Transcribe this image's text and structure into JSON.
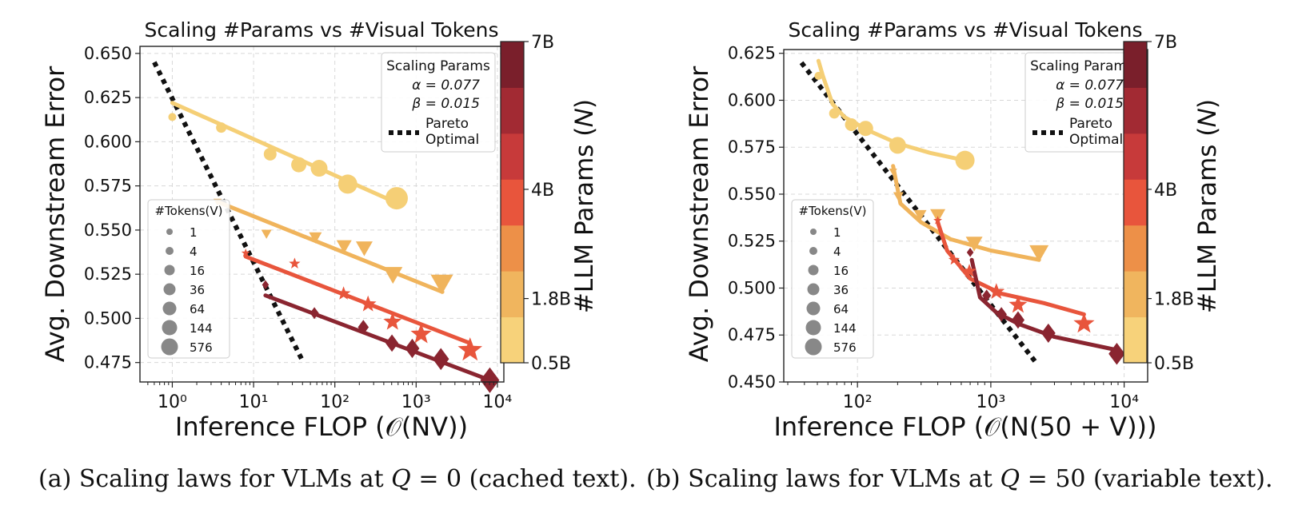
{
  "captions": {
    "a": {
      "prefix": "(a) Scaling laws for VLMs at ",
      "var": "Q",
      "eq": " = 0",
      "suffix": " (cached text)."
    },
    "b": {
      "prefix": "(b) Scaling laws for VLMs at ",
      "var": "Q",
      "eq": " = 50",
      "suffix": " (variable text)."
    }
  },
  "chart_data": [
    {
      "type": "scatter",
      "title": "Scaling #Params vs #Visual Tokens",
      "xlabel": "Inference FLOP (𝒪(NV))",
      "ylabel": "Avg. Downstream Error",
      "xscale": "log",
      "xlim": [
        0.4,
        12000
      ],
      "ylim": [
        0.464,
        0.654
      ],
      "xticks": [
        {
          "v": 1,
          "label": "10⁰"
        },
        {
          "v": 10,
          "label": "10¹"
        },
        {
          "v": 100,
          "label": "10²"
        },
        {
          "v": 1000,
          "label": "10³"
        },
        {
          "v": 10000,
          "label": "10⁴"
        }
      ],
      "yticks": [
        0.475,
        0.5,
        0.525,
        0.55,
        0.575,
        0.6,
        0.625,
        0.65
      ],
      "grid": true,
      "scaling_params_box": {
        "title": "Scaling Params",
        "alpha": "α = 0.077",
        "beta": "β = 0.015",
        "pareto_label_1": "Pareto",
        "pareto_label_2": "Optimal"
      },
      "pareto": [
        [
          0.6,
          0.645
        ],
        [
          40,
          0.476
        ]
      ],
      "series": [
        {
          "params": "0.5B",
          "color": "#f5cf76",
          "marker": "circle",
          "fit": [
            [
              1,
              0.622
            ],
            [
              600,
              0.565
            ]
          ],
          "points": [
            [
              1,
              0.614
            ],
            [
              4,
              0.608
            ],
            [
              16,
              0.593
            ],
            [
              36,
              0.587
            ],
            [
              64,
              0.585
            ],
            [
              144,
              0.576
            ],
            [
              576,
              0.568
            ]
          ]
        },
        {
          "params": "1.8B",
          "color": "#f0b45c",
          "marker": "triangle-down",
          "fit": [
            [
              3.6,
              0.566
            ],
            [
              2100,
              0.515
            ]
          ],
          "points": [
            [
              3.6,
              0.566
            ],
            [
              14.4,
              0.548
            ],
            [
              57.6,
              0.546
            ],
            [
              130,
              0.541
            ],
            [
              230,
              0.54
            ],
            [
              518,
              0.525
            ],
            [
              2074,
              0.52
            ]
          ]
        },
        {
          "params": "4B",
          "color": "#e8553c",
          "marker": "star",
          "fit": [
            [
              8,
              0.535
            ],
            [
              4600,
              0.486
            ]
          ],
          "points": [
            [
              8,
              0.537
            ],
            [
              32,
              0.531
            ],
            [
              128,
              0.514
            ],
            [
              256,
              0.508
            ],
            [
              512,
              0.498
            ],
            [
              1152,
              0.491
            ],
            [
              4608,
              0.482
            ]
          ]
        },
        {
          "params": "7B",
          "color": "#8a2530",
          "marker": "diamond",
          "fit": [
            [
              14,
              0.513
            ],
            [
              8100,
              0.465
            ]
          ],
          "points": [
            [
              14,
              0.519
            ],
            [
              56,
              0.503
            ],
            [
              224,
              0.495
            ],
            [
              504,
              0.486
            ],
            [
              896,
              0.483
            ],
            [
              2016,
              0.477
            ],
            [
              8064,
              0.465
            ]
          ]
        }
      ]
    },
    {
      "type": "scatter",
      "title": "Scaling #Params vs #Visual Tokens",
      "xlabel": "Inference FLOP (𝒪(N(50 + V)))",
      "ylabel": "Avg. Downstream Error",
      "xscale": "log",
      "xlim": [
        28,
        15000
      ],
      "ylim": [
        0.45,
        0.627
      ],
      "xticks": [
        {
          "v": 100,
          "label": "10²"
        },
        {
          "v": 1000,
          "label": "10³"
        },
        {
          "v": 10000,
          "label": "10⁴"
        }
      ],
      "yticks": [
        0.45,
        0.475,
        0.5,
        0.525,
        0.55,
        0.575,
        0.6,
        0.625
      ],
      "grid": true,
      "scaling_params_box": {
        "title": "Scaling Params",
        "alpha": "α = 0.077",
        "beta": "β = 0.015",
        "pareto_label_1": "Pareto",
        "pareto_label_2": "Optimal"
      },
      "pareto": [
        [
          38,
          0.62
        ],
        [
          2200,
          0.46
        ]
      ],
      "series": [
        {
          "params": "0.5B",
          "color": "#f5cf76",
          "marker": "circle",
          "fit": [
            [
              51,
              0.621
            ],
            [
              55,
              0.613
            ],
            [
              65,
              0.598
            ],
            [
              80,
              0.591
            ],
            [
              120,
              0.584
            ],
            [
              200,
              0.577
            ],
            [
              350,
              0.572
            ],
            [
              640,
              0.568
            ]
          ],
          "points": [
            [
              51,
              0.613
            ],
            [
              67,
              0.593
            ],
            [
              90,
              0.587
            ],
            [
              115,
              0.585
            ],
            [
              200,
              0.576
            ],
            [
              640,
              0.568
            ]
          ]
        },
        {
          "params": "1.8B",
          "color": "#f0b45c",
          "marker": "triangle-down",
          "fit": [
            [
              185,
              0.565
            ],
            [
              210,
              0.545
            ],
            [
              300,
              0.535
            ],
            [
              500,
              0.526
            ],
            [
              1000,
              0.52
            ],
            [
              2300,
              0.515
            ]
          ],
          "points": [
            [
              185,
              0.562
            ],
            [
              203,
              0.549
            ],
            [
              295,
              0.539
            ],
            [
              400,
              0.539
            ],
            [
              750,
              0.524
            ],
            [
              2300,
              0.519
            ]
          ]
        },
        {
          "params": "4B",
          "color": "#e8553c",
          "marker": "star",
          "fit": [
            [
              400,
              0.535
            ],
            [
              470,
              0.52
            ],
            [
              700,
              0.505
            ],
            [
              1200,
              0.497
            ],
            [
              2500,
              0.492
            ],
            [
              5000,
              0.486
            ]
          ],
          "points": [
            [
              400,
              0.536
            ],
            [
              530,
              0.515
            ],
            [
              690,
              0.509
            ],
            [
              1100,
              0.498
            ],
            [
              1600,
              0.491
            ],
            [
              5000,
              0.481
            ]
          ]
        },
        {
          "params": "7B",
          "color": "#8a2530",
          "marker": "diamond",
          "fit": [
            [
              720,
              0.515
            ],
            [
              830,
              0.495
            ],
            [
              1100,
              0.487
            ],
            [
              1600,
              0.481
            ],
            [
              3000,
              0.474
            ],
            [
              8800,
              0.467
            ]
          ],
          "points": [
            [
              700,
              0.519
            ],
            [
              930,
              0.496
            ],
            [
              1200,
              0.486
            ],
            [
              1600,
              0.483
            ],
            [
              2700,
              0.476
            ],
            [
              8800,
              0.465
            ]
          ]
        }
      ]
    }
  ],
  "tokens_legend": {
    "title": "#Tokens(V)",
    "items": [
      "1",
      "4",
      "16",
      "36",
      "64",
      "144",
      "576"
    ]
  },
  "colorbar": {
    "label": "#LLM Params (𝑁)",
    "ticks": [
      "0.5B",
      "1.8B",
      "4B",
      "7B"
    ],
    "colors": [
      "#f7d27a",
      "#f0b55e",
      "#ed9048",
      "#e8553c",
      "#c73a3a",
      "#a22a33",
      "#7a1f2b"
    ]
  }
}
